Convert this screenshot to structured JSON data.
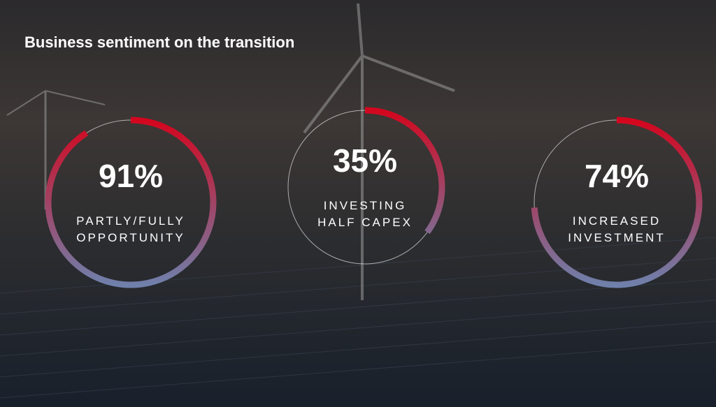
{
  "title": "Business sentiment on the transition",
  "chart_data": [
    {
      "type": "donut",
      "values": [
        91
      ],
      "value_labels": [
        "91%"
      ],
      "label_lines": [
        "PARTLY/FULLY",
        "OPPORTUNITY"
      ],
      "ylim": [
        0,
        100
      ],
      "colors": [
        "#d4061e",
        "#6f80ab"
      ]
    },
    {
      "type": "donut",
      "values": [
        35
      ],
      "value_labels": [
        "35%"
      ],
      "label_lines": [
        "INVESTING",
        "HALF CAPEX"
      ],
      "ylim": [
        0,
        100
      ],
      "colors": [
        "#d4061e",
        "#6f80ab"
      ]
    },
    {
      "type": "donut",
      "values": [
        74
      ],
      "value_labels": [
        "74%"
      ],
      "label_lines": [
        "INCREASED",
        "INVESTMENT"
      ],
      "ylim": [
        0,
        100
      ],
      "colors": [
        "#d4061e",
        "#6f80ab"
      ]
    }
  ]
}
